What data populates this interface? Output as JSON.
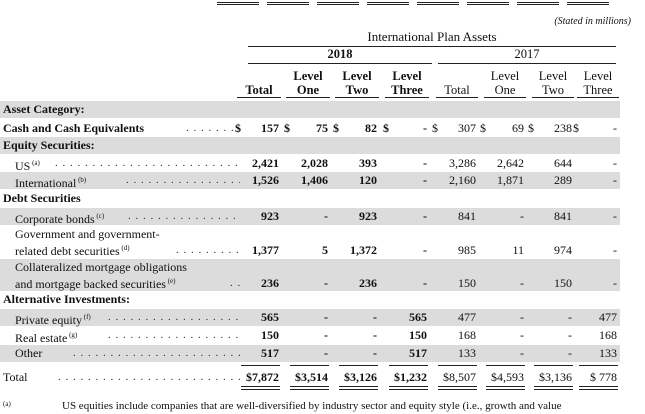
{
  "stated": "(Stated in millions)",
  "header": {
    "title": "International Plan Assets",
    "year_2018": "2018",
    "year_2017": "2017",
    "columns_2018": [
      "Total",
      "Level One",
      "Level Two",
      "Level Three"
    ],
    "columns_2017": [
      "Total",
      "Level One",
      "Level Two",
      "Level Three"
    ]
  },
  "rows": [
    {
      "label": "Asset Category:",
      "style": "section",
      "shade": true,
      "cells": [
        "",
        "",
        "",
        "",
        "",
        "",
        "",
        ""
      ]
    },
    {
      "label": "Cash and Cash Equivalents",
      "style": "bold-row",
      "shade": false,
      "dots": true,
      "cells": [
        "157",
        "75",
        "82",
        "-",
        "307",
        "69",
        "238",
        "-"
      ],
      "dollar": true
    },
    {
      "label": "Equity Securities:",
      "style": "section",
      "shade": true,
      "cells": [
        "",
        "",
        "",
        "",
        "",
        "",
        "",
        ""
      ]
    },
    {
      "label": "US",
      "sup": "(a)",
      "style": "indent",
      "shade": false,
      "dots": true,
      "cells": [
        "2,421",
        "2,028",
        "393",
        "-",
        "3,286",
        "2,642",
        "644",
        "-"
      ]
    },
    {
      "label": "International",
      "sup": "(b)",
      "style": "indent",
      "shade": true,
      "dots": true,
      "cells": [
        "1,526",
        "1,406",
        "120",
        "-",
        "2,160",
        "1,871",
        "289",
        "-"
      ]
    },
    {
      "label": "Debt Securities",
      "style": "section",
      "shade": false,
      "cells": [
        "",
        "",
        "",
        "",
        "",
        "",
        "",
        ""
      ]
    },
    {
      "label": "Corporate bonds",
      "sup": "(c)",
      "style": "indent",
      "shade": true,
      "dots": true,
      "cells": [
        "923",
        "-",
        "923",
        "-",
        "841",
        "-",
        "841",
        "-"
      ]
    },
    {
      "label": "Government and government-",
      "label2": "related debt securities",
      "sup": "(d)",
      "style": "indent2",
      "shade": false,
      "dots": true,
      "cells": [
        "1,377",
        "5",
        "1,372",
        "-",
        "985",
        "11",
        "974",
        "-"
      ]
    },
    {
      "label": "Collateralized mortgage obligations",
      "label2": "and mortgage backed securities",
      "sup": "(e)",
      "style": "indent2",
      "shade": true,
      "dots": true,
      "cells": [
        "236",
        "-",
        "236",
        "-",
        "150",
        "-",
        "150",
        "-"
      ]
    },
    {
      "label": "Alternative Investments:",
      "style": "section",
      "shade": false,
      "cells": [
        "",
        "",
        "",
        "",
        "",
        "",
        "",
        ""
      ]
    },
    {
      "label": "Private equity",
      "sup": "(f)",
      "style": "indent",
      "shade": true,
      "dots": true,
      "cells": [
        "565",
        "-",
        "-",
        "565",
        "477",
        "-",
        "-",
        "477"
      ]
    },
    {
      "label": "Real estate",
      "sup": "(g)",
      "style": "indent",
      "shade": false,
      "dots": true,
      "cells": [
        "150",
        "-",
        "-",
        "150",
        "168",
        "-",
        "-",
        "168"
      ]
    },
    {
      "label": "Other",
      "style": "indent",
      "shade": true,
      "dots": true,
      "cells": [
        "517",
        "-",
        "-",
        "517",
        "133",
        "-",
        "-",
        "133"
      ]
    },
    {
      "label": "Total",
      "style": "total",
      "shade": false,
      "dots": true,
      "cells": [
        "$7,872",
        "$3,514",
        "$3,126",
        "$1,232",
        "$8,507",
        "$4,593",
        "$3,136",
        "$ 778"
      ]
    }
  ],
  "dollar_sign": "$",
  "footnote": {
    "mark": "(a)",
    "text": "US equities include companies that are well-diversified by industry sector and equity style (i.e., growth and value"
  }
}
